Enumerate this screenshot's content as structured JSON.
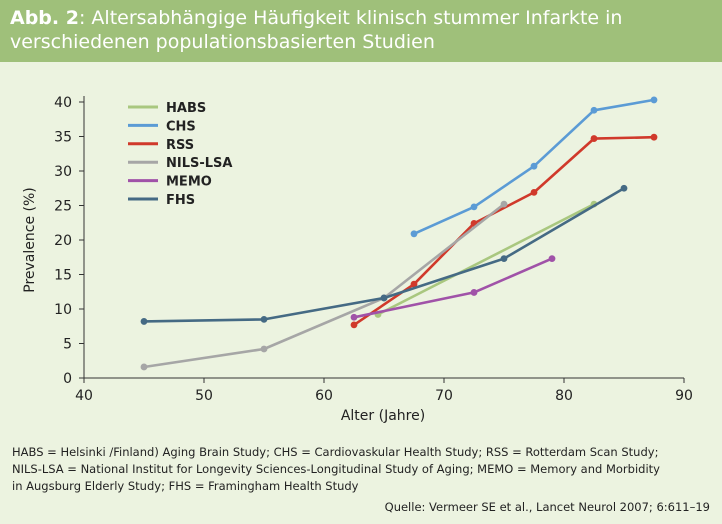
{
  "header": {
    "figure_label": "Abb. 2",
    "separator": ":",
    "title": "Altersabhängige Häufigkeit klinisch stummer Infarkte in verschiedenen populationsbasierten Studien"
  },
  "chart_data": {
    "type": "line",
    "xlabel": "Alter (Jahre)",
    "ylabel": "Prevalence (%)",
    "xlim": [
      40,
      90
    ],
    "ylim": [
      0,
      40
    ],
    "xticks": [
      40,
      50,
      60,
      70,
      80,
      90
    ],
    "yticks": [
      0,
      5,
      10,
      15,
      20,
      25,
      30,
      35,
      40
    ],
    "grid": false,
    "legend_position": "top-left",
    "series": [
      {
        "name": "HABS",
        "color": "#a9c77f",
        "points": [
          [
            64.5,
            9.2
          ],
          [
            82.5,
            25.2
          ]
        ]
      },
      {
        "name": "CHS",
        "color": "#5b9bd5",
        "points": [
          [
            67.5,
            20.9
          ],
          [
            72.5,
            24.8
          ],
          [
            77.5,
            30.7
          ],
          [
            82.5,
            38.8
          ],
          [
            87.5,
            40.3
          ]
        ]
      },
      {
        "name": "RSS",
        "color": "#d0392b",
        "points": [
          [
            62.5,
            7.7
          ],
          [
            67.5,
            13.6
          ],
          [
            72.5,
            22.4
          ],
          [
            77.5,
            26.9
          ],
          [
            82.5,
            34.7
          ],
          [
            87.5,
            34.9
          ]
        ]
      },
      {
        "name": "NILS-LSA",
        "color": "#a6a6a6",
        "points": [
          [
            45,
            1.6
          ],
          [
            55,
            4.2
          ],
          [
            65,
            11.6
          ],
          [
            75,
            25.2
          ]
        ]
      },
      {
        "name": "MEMO",
        "color": "#a052a8",
        "points": [
          [
            62.5,
            8.8
          ],
          [
            72.5,
            12.4
          ],
          [
            79,
            17.3
          ]
        ]
      },
      {
        "name": "FHS",
        "color": "#456a84",
        "points": [
          [
            45,
            8.2
          ],
          [
            55,
            8.5
          ],
          [
            65,
            11.6
          ],
          [
            75,
            17.3
          ],
          [
            85,
            27.5
          ]
        ]
      }
    ]
  },
  "footnote": {
    "line1": "HABS = Helsinki /Finland) Aging Brain Study; CHS = Cardiovaskular Health Study; RSS = Rotterdam Scan Study;",
    "line2": "NILS-LSA = National Institut for Longevity Sciences-Longitudinal Study of Aging; MEMO = Memory and Morbidity",
    "line3": "in Augsburg Elderly Study; FHS = Framingham Health Study"
  },
  "source": "Quelle: Vermeer SE et al., Lancet Neurol 2007; 6:611–19"
}
